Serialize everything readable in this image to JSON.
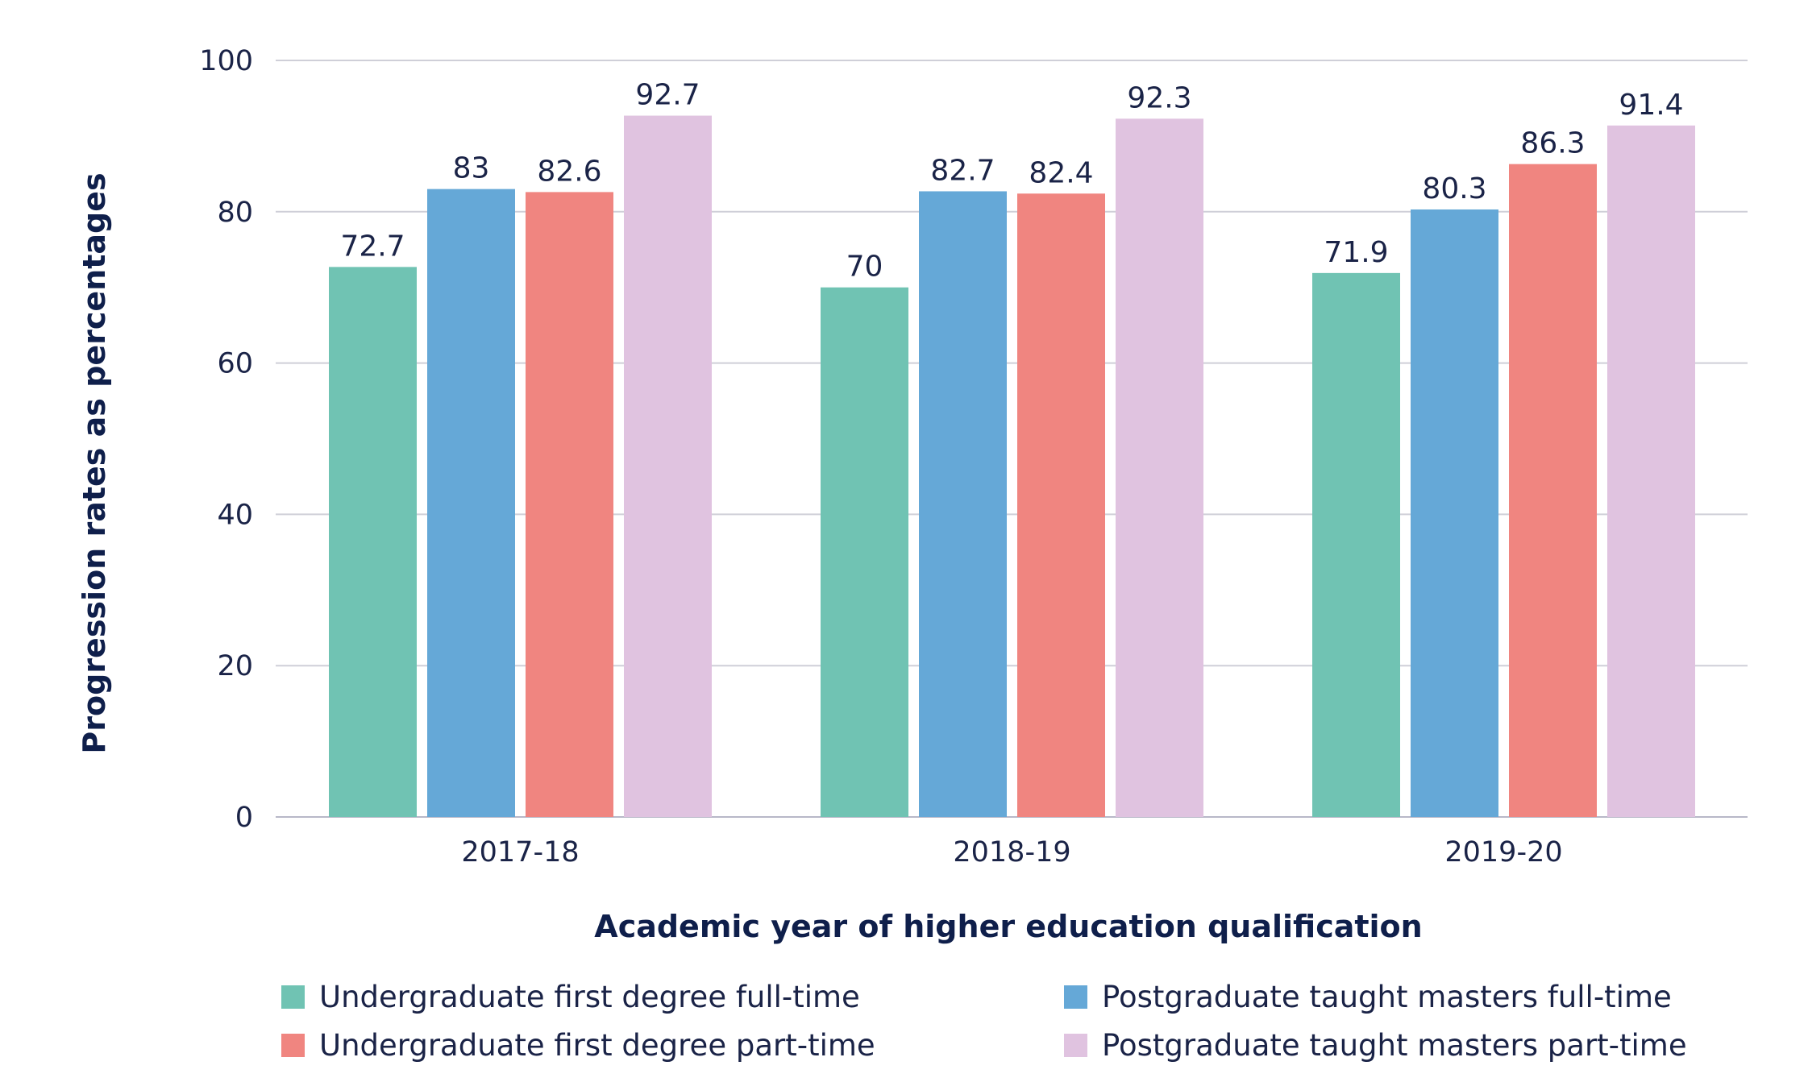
{
  "chart_data": {
    "type": "bar",
    "title": "",
    "xlabel": "Academic year of higher education qualification",
    "ylabel": "Progression rates as percentages",
    "ylim": [
      0,
      100
    ],
    "yticks": [
      0,
      20,
      40,
      60,
      80,
      100
    ],
    "grid": true,
    "legend_position": "bottom",
    "categories": [
      "2017-18",
      "2018-19",
      "2019-20"
    ],
    "series": [
      {
        "name": "Undergraduate first degree full-time",
        "color": "#70c3b3",
        "values": [
          72.7,
          70,
          71.9
        ]
      },
      {
        "name": "Postgraduate taught masters full-time",
        "color": "#65a8d7",
        "values": [
          83,
          82.7,
          80.3
        ]
      },
      {
        "name": "Undergraduate first degree part-time",
        "color": "#f08580",
        "values": [
          82.6,
          82.4,
          86.3
        ]
      },
      {
        "name": "Postgraduate taught masters part-time",
        "color": "#e0c3e0",
        "values": [
          92.7,
          92.3,
          91.4
        ]
      }
    ],
    "legend_order": [
      0,
      1,
      2,
      3
    ]
  }
}
